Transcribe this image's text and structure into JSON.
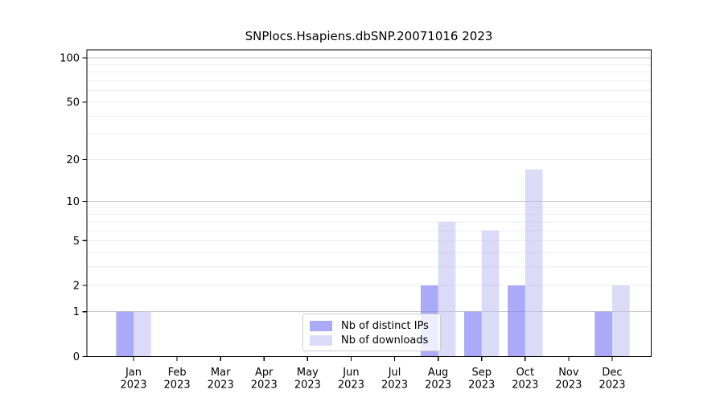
{
  "figure": {
    "title": "SNPlocs.Hsapiens.dbSNP.20071016 2023"
  },
  "chart_data": {
    "type": "bar",
    "title": "SNPlocs.Hsapiens.dbSNP.20071016 2023",
    "x_axis": {
      "months": [
        "Jan",
        "Feb",
        "Mar",
        "Apr",
        "May",
        "Jun",
        "Jul",
        "Aug",
        "Sep",
        "Oct",
        "Nov",
        "Dec"
      ],
      "year": "2023"
    },
    "y_axis": {
      "scale": "log1p",
      "ylim": [
        0,
        113
      ],
      "tick_values": [
        0,
        1,
        2,
        5,
        10,
        20,
        50,
        100
      ],
      "major_gridlines": [
        1,
        10,
        100
      ],
      "minor_gridlines": [
        2,
        3,
        4,
        5,
        6,
        7,
        8,
        9,
        20,
        30,
        40,
        50,
        60,
        70,
        80,
        90
      ]
    },
    "series": [
      {
        "name": "Nb of distinct IPs",
        "values": [
          1,
          0,
          0,
          0,
          0,
          0,
          0,
          2,
          1,
          2,
          0,
          1
        ],
        "color": "#aaaaf8",
        "fill_rgba": "rgba(124,124,244,0.65)"
      },
      {
        "name": "Nb of downloads",
        "values": [
          1,
          0,
          0,
          0,
          0,
          0,
          0,
          7,
          6,
          17,
          0,
          2
        ],
        "color": "#dadaf8",
        "fill_rgba": "rgba(190,190,243,0.55)"
      }
    ],
    "legend": [
      "Nb of distinct IPs",
      "Nb of downloads"
    ],
    "grid": "horizontal",
    "legend_position": "inside-lower-center"
  },
  "colors": {
    "background": "#ffffff",
    "axis": "#000000",
    "major_grid": "#c6c6c6",
    "minor_grid": "#ececec",
    "text": "#000000",
    "legend_border": "#cccccc",
    "legend_bg": "rgba(255,255,255,0.8)"
  }
}
